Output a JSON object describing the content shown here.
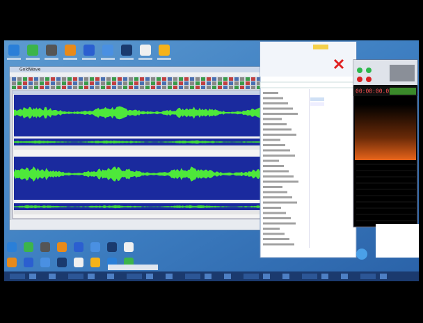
{
  "editor": {
    "title": "GoldWave"
  },
  "recorder": {
    "time": "00:00:00.02"
  }
}
